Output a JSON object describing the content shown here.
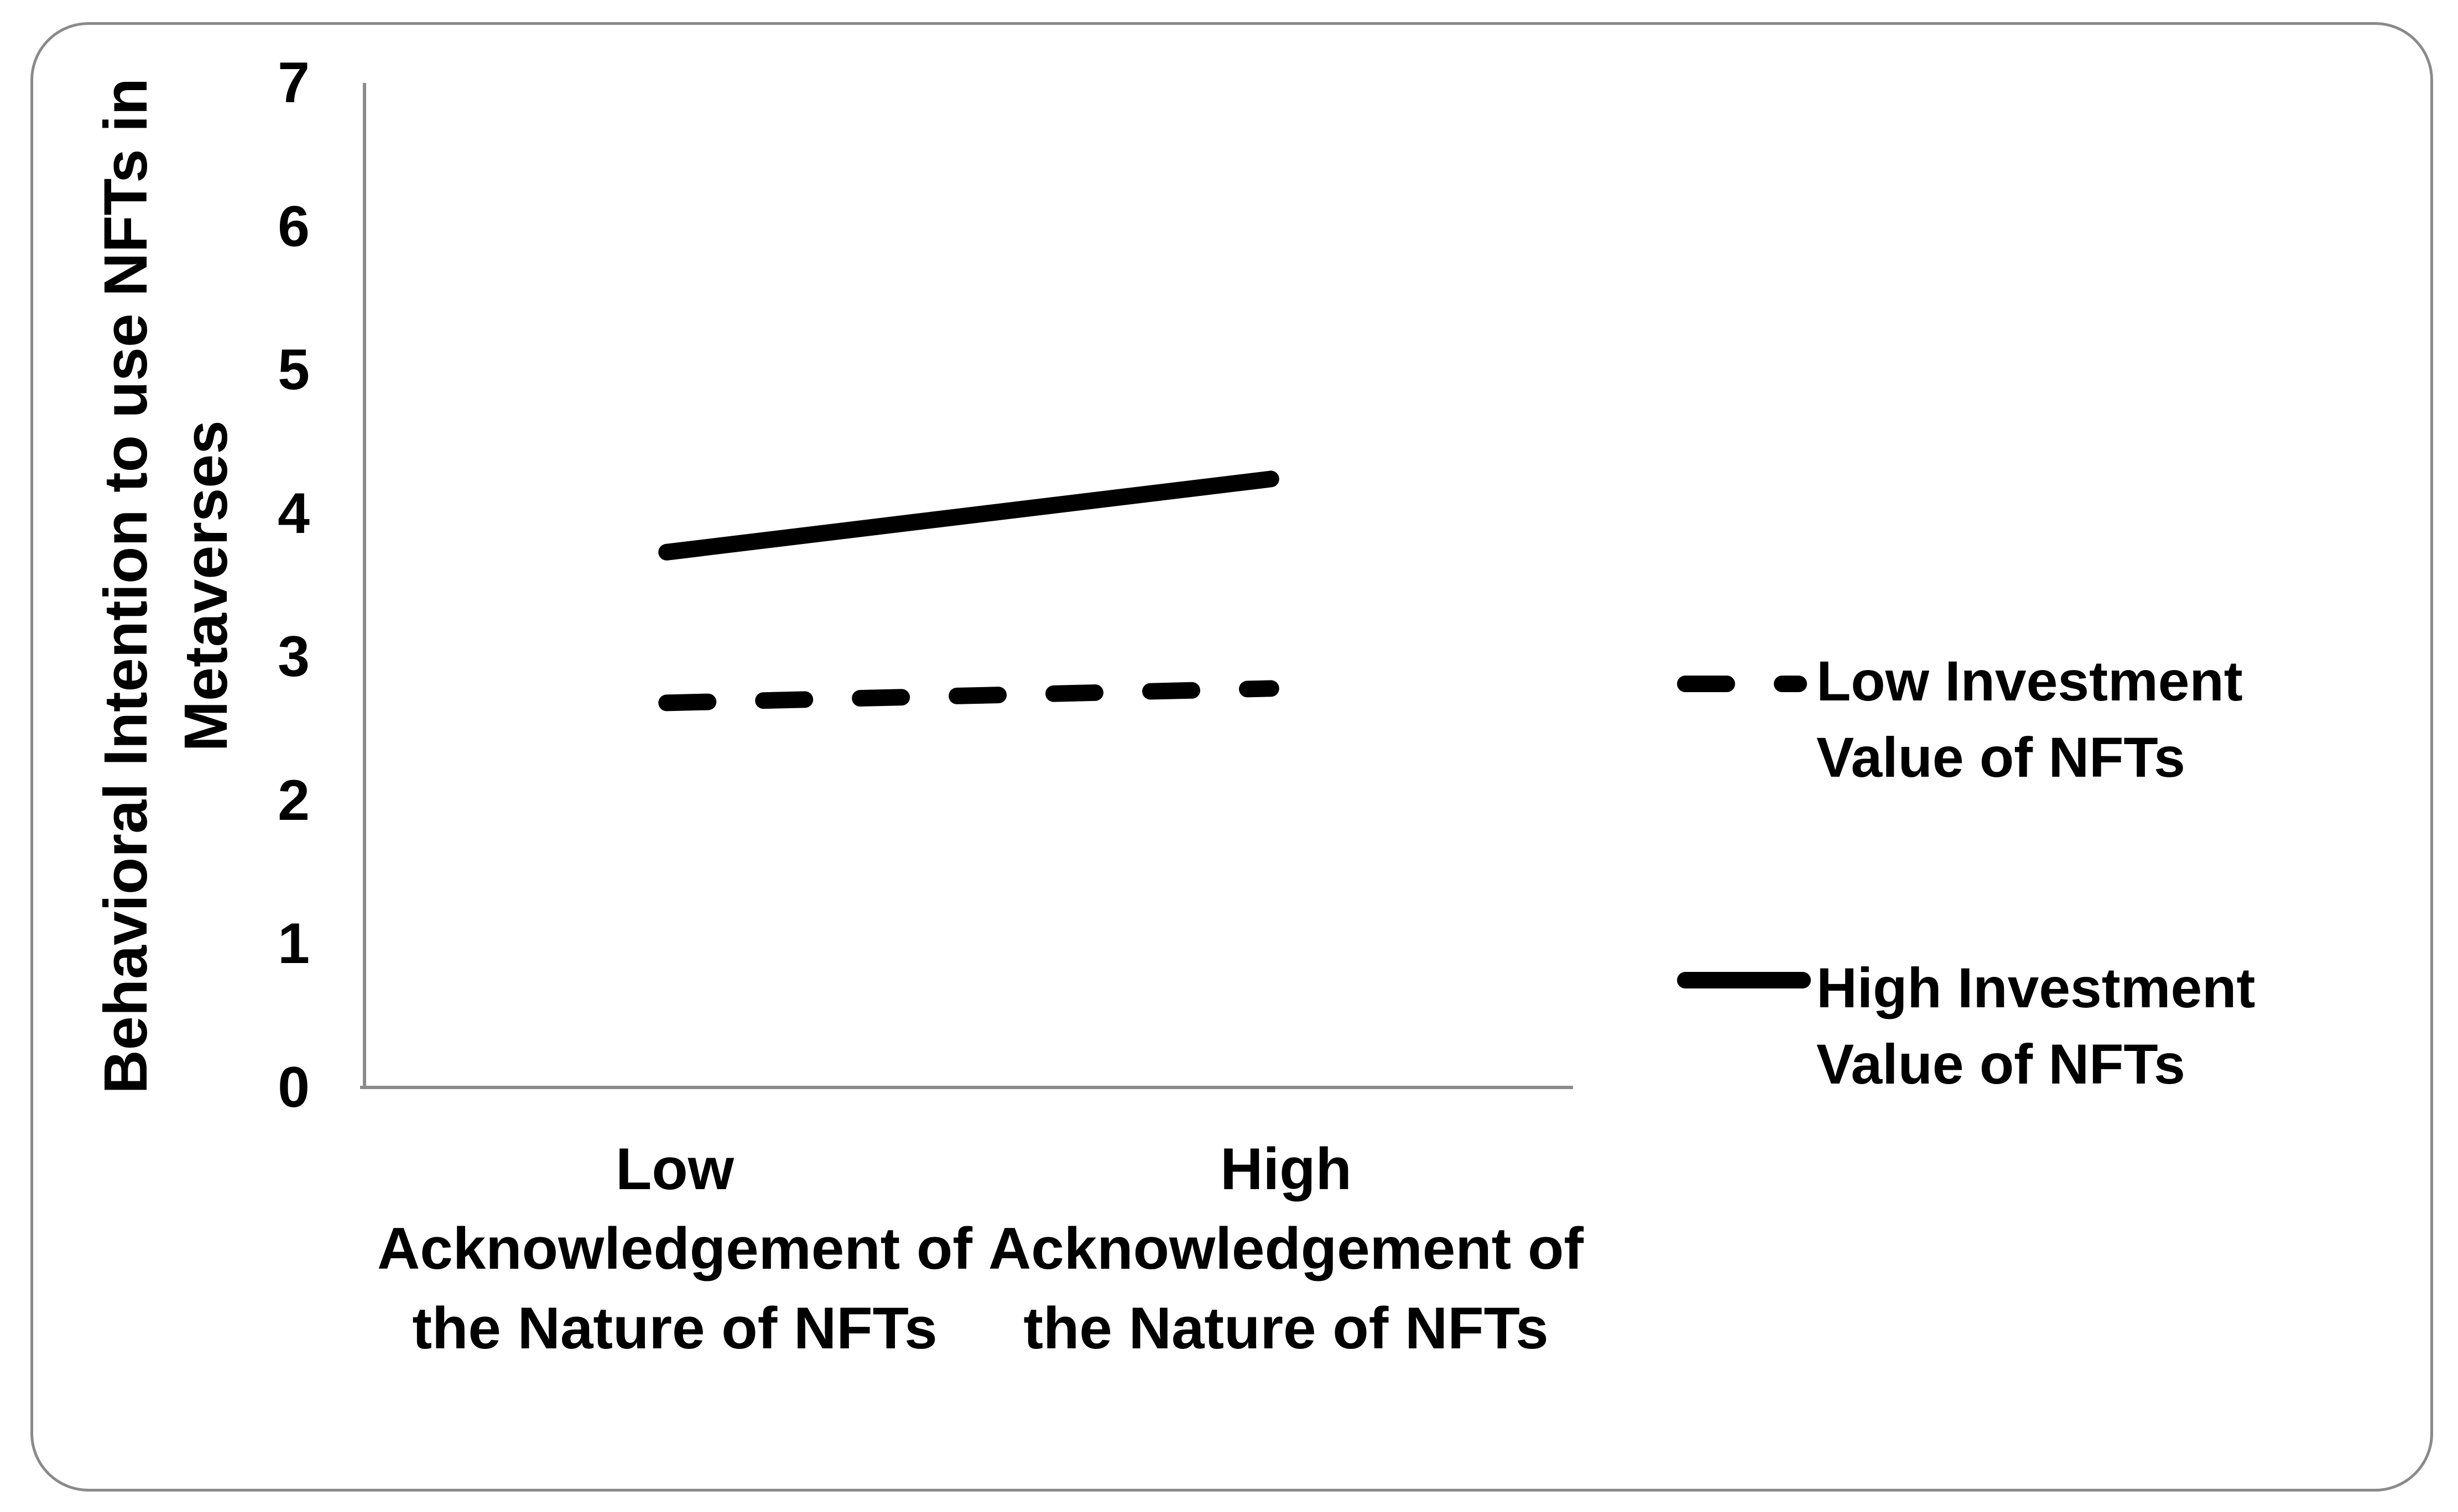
{
  "figure": {
    "background_color": "#ffffff",
    "border_color": "#8a8a8a",
    "axis_color": "#8b8b8b",
    "line_color": "#000000"
  },
  "chart_data": {
    "type": "line",
    "ylabel": "Behavioral Intention to use NFTs in Metaverses",
    "ylabel_lines": [
      "Behavioral Intention to use NFTs in",
      "Metaverses"
    ],
    "categories": [
      "Low Acknowledgement of the Nature of NFTs",
      "High Acknowledgement of the Nature of NFTs"
    ],
    "categories_lines": [
      [
        "Low",
        "Acknowledgement of",
        "the Nature of NFTs"
      ],
      [
        "High",
        "Acknowledgement of",
        "the Nature of NFTs"
      ]
    ],
    "yticks": [
      0,
      1,
      2,
      3,
      4,
      5,
      6,
      7
    ],
    "ylim": [
      0,
      7
    ],
    "grid": false,
    "legend_position": "right",
    "series": [
      {
        "name": "Low Investment Value of NFTs",
        "name_lines": [
          "Low Investment",
          "Value of NFTs"
        ],
        "style": "dashed",
        "color": "#000000",
        "values": [
          2.68,
          2.78
        ]
      },
      {
        "name": "High Investment Value of NFTs",
        "name_lines": [
          "High Investment",
          "Value of NFTs"
        ],
        "style": "solid",
        "color": "#000000",
        "values": [
          3.73,
          4.24
        ]
      }
    ]
  }
}
